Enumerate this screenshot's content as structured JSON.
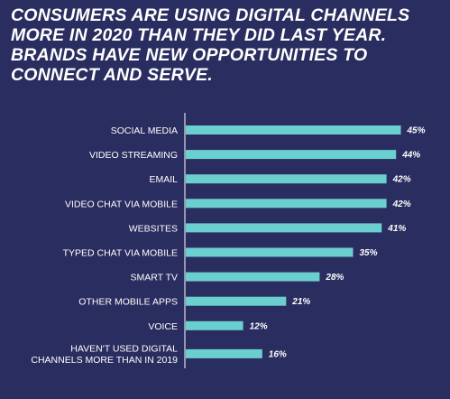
{
  "header": {
    "title_lines": [
      "CONSUMERS ARE USING DIGITAL CHANNELS",
      "MORE IN 2020 THAN THEY DID LAST YEAR.",
      "BRANDS HAVE NEW OPPORTUNITIES TO",
      "CONNECT AND SERVE."
    ]
  },
  "colors": {
    "background": "#2a2d5f",
    "bar": "#6ccfcf",
    "axis": "#ffffff",
    "text": "#ffffff"
  },
  "chart_data": {
    "type": "bar",
    "orientation": "horizontal",
    "title": "CONSUMERS ARE USING DIGITAL CHANNELS MORE IN 2020 THAN THEY DID LAST YEAR. BRANDS HAVE NEW OPPORTUNITIES TO CONNECT AND SERVE.",
    "categories": [
      "SOCIAL MEDIA",
      "VIDEO STREAMING",
      "EMAIL",
      "VIDEO CHAT VIA MOBILE",
      "WEBSITES",
      "TYPED CHAT VIA MOBILE",
      "SMART TV",
      "OTHER MOBILE APPS",
      "VOICE",
      "HAVEN'T USED DIGITAL CHANNELS MORE THAN IN 2019"
    ],
    "category_lines": [
      [
        "SOCIAL MEDIA"
      ],
      [
        "VIDEO STREAMING"
      ],
      [
        "EMAIL"
      ],
      [
        "VIDEO CHAT VIA MOBILE"
      ],
      [
        "WEBSITES"
      ],
      [
        "TYPED CHAT VIA MOBILE"
      ],
      [
        "SMART TV"
      ],
      [
        "OTHER MOBILE APPS"
      ],
      [
        "VOICE"
      ],
      [
        "HAVEN'T USED DIGITAL",
        "CHANNELS MORE THAN IN 2019"
      ]
    ],
    "values": [
      45,
      44,
      42,
      42,
      41,
      35,
      28,
      21,
      12,
      16
    ],
    "value_labels": [
      "45%",
      "44%",
      "42%",
      "42%",
      "41%",
      "35%",
      "28%",
      "21%",
      "12%",
      "16%"
    ],
    "unit": "%",
    "xlim": [
      0,
      50
    ],
    "grid": false,
    "legend": "none"
  }
}
